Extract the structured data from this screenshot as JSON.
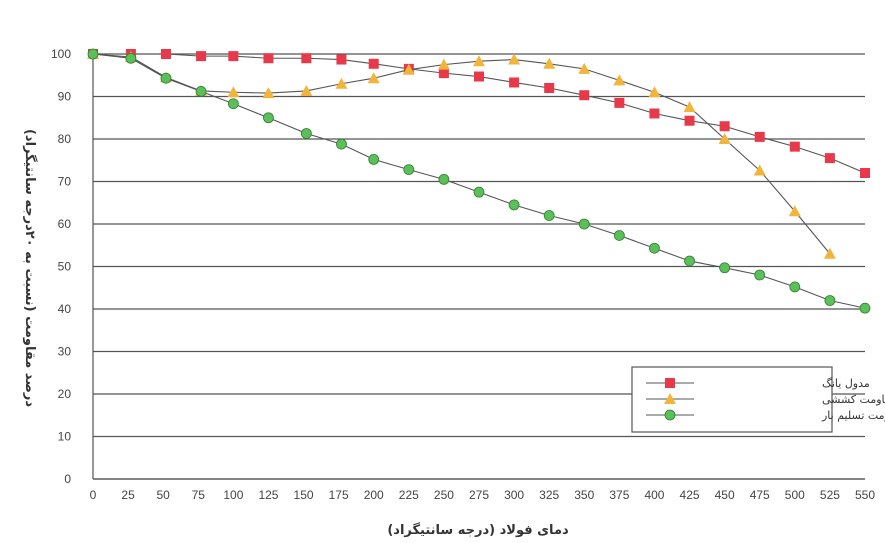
{
  "chart_data": {
    "type": "line",
    "title": "",
    "xlabel": "دمای فولاد (درجه سانتیگراد)",
    "ylabel": "درصد مقاومت (نسبت به ۲۰درجه سانتیگراد)",
    "xlim": [
      0,
      550
    ],
    "ylim": [
      0,
      100
    ],
    "x_ticks": [
      0,
      25,
      50,
      75,
      100,
      125,
      150,
      175,
      200,
      225,
      250,
      275,
      300,
      325,
      350,
      375,
      400,
      425,
      450,
      475,
      500,
      525,
      550
    ],
    "y_ticks": [
      0,
      10,
      20,
      30,
      40,
      50,
      60,
      70,
      80,
      90,
      100
    ],
    "grid": "horizontal",
    "legend_position": "bottom-right",
    "series": [
      {
        "name": "مدول یانگ",
        "marker": "square",
        "color": "#e8394a",
        "x": [
          0,
          27,
          52,
          77,
          100,
          125,
          152,
          177,
          200,
          225,
          250,
          275,
          300,
          325,
          350,
          375,
          400,
          425,
          450,
          475,
          500,
          525,
          550
        ],
        "y": [
          100,
          100,
          100,
          99.5,
          99.5,
          99,
          99,
          98.7,
          97.7,
          96.5,
          95.5,
          94.7,
          93.3,
          92,
          90.3,
          88.5,
          86,
          84.3,
          83,
          80.5,
          78.2,
          75.5,
          72
        ]
      },
      {
        "name": "مقاومت کششی",
        "marker": "triangle",
        "color": "#f3b43c",
        "x": [
          0,
          27,
          52,
          77,
          100,
          125,
          152,
          177,
          200,
          225,
          250,
          275,
          300,
          325,
          350,
          375,
          400,
          425,
          450,
          475,
          500,
          525
        ],
        "y": [
          100,
          99.3,
          94.5,
          91.3,
          91,
          90.8,
          91.3,
          93,
          94.3,
          96.3,
          97.5,
          98.3,
          98.7,
          97.7,
          96.5,
          93.8,
          91,
          87.5,
          80,
          72.6,
          63,
          53
        ]
      },
      {
        "name": "مقاومت تسلیم بار",
        "marker": "circle",
        "color": "#5bbf5a",
        "x": [
          0,
          27,
          52,
          77,
          100,
          125,
          152,
          177,
          200,
          225,
          250,
          275,
          300,
          325,
          350,
          375,
          400,
          425,
          450,
          475,
          500,
          525,
          550
        ],
        "y": [
          100,
          99,
          94.3,
          91.2,
          88.3,
          85,
          81.3,
          78.8,
          75.2,
          72.8,
          70.5,
          67.5,
          64.5,
          62,
          60,
          57.3,
          54.3,
          51.3,
          49.7,
          48,
          45.2,
          42,
          40.2
        ]
      }
    ]
  }
}
